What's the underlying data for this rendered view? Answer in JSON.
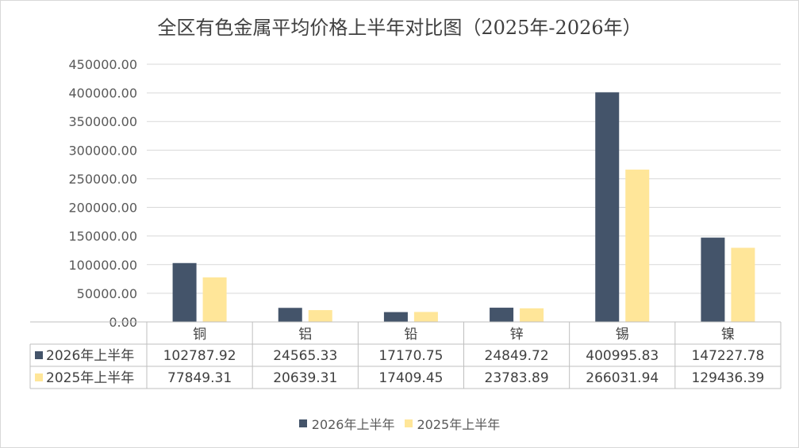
{
  "chart_data": {
    "type": "bar",
    "title": "全区有色金属平均价格上半年对比图（2025年-2026年）",
    "categories": [
      "铜",
      "铝",
      "铅",
      "锌",
      "锡",
      "镍"
    ],
    "series": [
      {
        "name": "2026年上半年",
        "color": "#44546a",
        "values": [
          102787.92,
          24565.33,
          17170.75,
          24849.72,
          400995.83,
          147227.78
        ],
        "labels": [
          "102787.92",
          "24565.33",
          "17170.75",
          "24849.72",
          "400995.83",
          "147227.78"
        ]
      },
      {
        "name": "2025年上半年",
        "color": "#ffe699",
        "values": [
          77849.31,
          20639.31,
          17409.45,
          23783.89,
          266031.94,
          129436.39
        ],
        "labels": [
          "77849.31",
          "20639.31",
          "17409.45",
          "23783.89",
          "266031.94",
          "129436.39"
        ]
      }
    ],
    "ylim": [
      0,
      450000
    ],
    "yticks": [
      0,
      50000,
      100000,
      150000,
      200000,
      250000,
      300000,
      350000,
      400000,
      450000
    ],
    "ytick_labels": [
      "0.00",
      "50000.00",
      "100000.00",
      "150000.00",
      "200000.00",
      "250000.00",
      "300000.00",
      "350000.00",
      "400000.00",
      "450000.00"
    ],
    "grid": true,
    "data_table": true,
    "legend_position": "bottom"
  }
}
